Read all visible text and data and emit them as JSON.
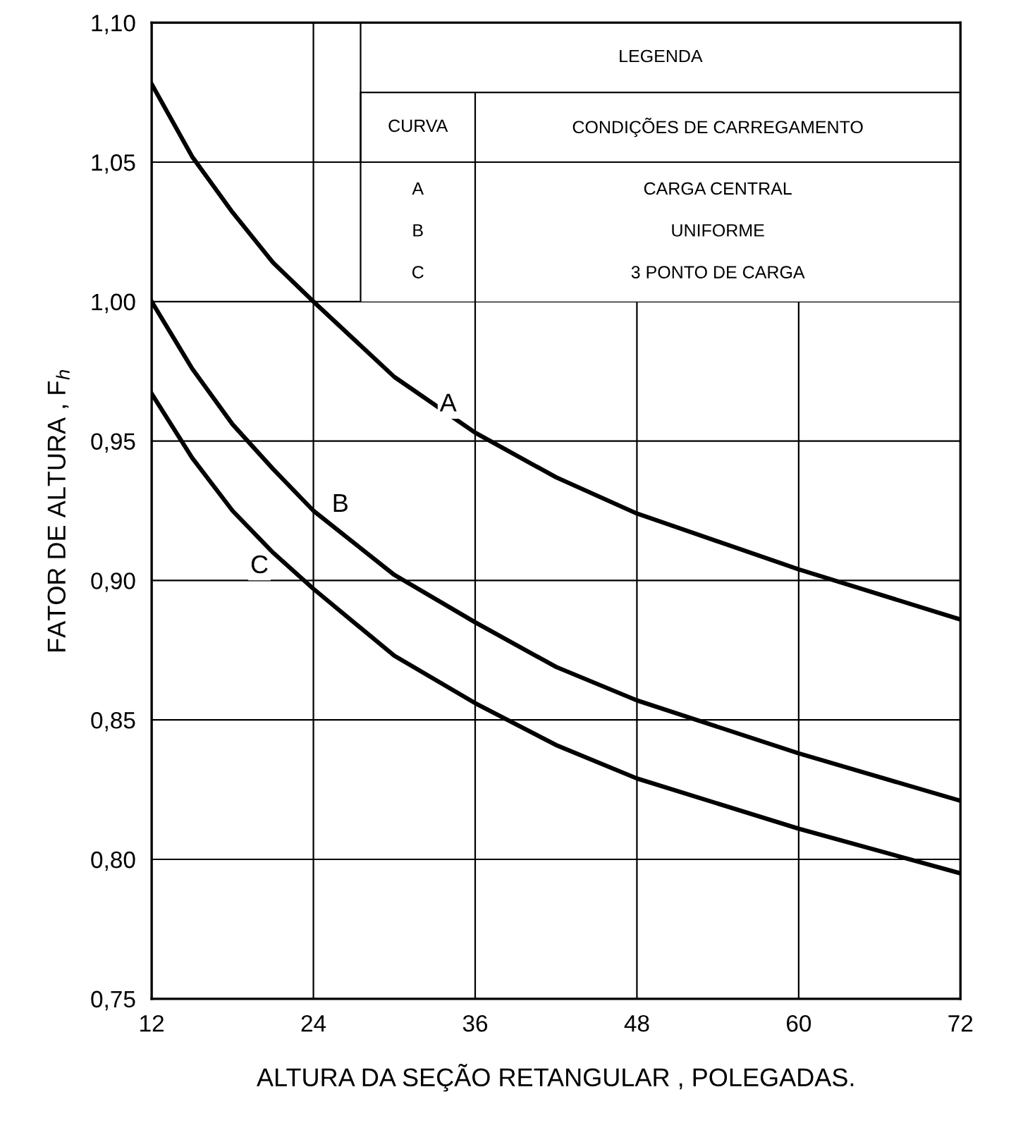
{
  "chart_data": {
    "type": "line",
    "xlabel": "ALTURA DA SEÇÃO RETANGULAR , POLEGADAS.",
    "ylabel": "FATOR DE ALTURA , F$_{h}$",
    "x": [
      12,
      15,
      18,
      21,
      24,
      30,
      36,
      42,
      48,
      60,
      72
    ],
    "series": [
      {
        "color": "#000000",
        "values": [
          1.078,
          1.052,
          1.032,
          1.014,
          1.0,
          0.973,
          0.953,
          0.937,
          0.924,
          0.904,
          0.886
        ]
      },
      {
        "color": "#000000",
        "values": [
          1.0,
          0.976,
          0.956,
          0.94,
          0.925,
          0.902,
          0.885,
          0.869,
          0.857,
          0.838,
          0.821
        ]
      },
      {
        "color": "#000000",
        "values": [
          0.967,
          0.944,
          0.925,
          0.91,
          0.897,
          0.873,
          0.856,
          0.841,
          0.829,
          0.811,
          0.795
        ]
      }
    ],
    "xlim": [
      12,
      72
    ],
    "xticks": [
      12,
      24,
      36,
      48,
      60,
      72
    ],
    "ylim": [
      0.75,
      1.1
    ],
    "yticks": [
      {
        "value": 0.75,
        "label": "0,75"
      },
      {
        "value": 0.8,
        "label": "0,80"
      },
      {
        "value": 0.85,
        "label": "0,85"
      },
      {
        "value": 0.9,
        "label": "0,90"
      },
      {
        "value": 0.95,
        "label": "0,95"
      },
      {
        "value": 1.0,
        "label": "1,00"
      },
      {
        "value": 1.05,
        "label": "1,05"
      },
      {
        "value": 1.1,
        "label": "1,10"
      }
    ],
    "grid": true,
    "annotations": [
      {
        "text": "A",
        "x": 34,
        "y": 0.963
      },
      {
        "text": "B",
        "x": 26,
        "y": 0.927
      },
      {
        "text": "C",
        "x": 20,
        "y": 0.905
      },
      "LEGENDA",
      "CURVA",
      "CONDIÇÕES DE CARREGAMENTO",
      "A",
      "CARGA CENTRAL",
      "B",
      "UNIFORME",
      "C",
      "3 PONTO DE CARGA"
    ]
  }
}
